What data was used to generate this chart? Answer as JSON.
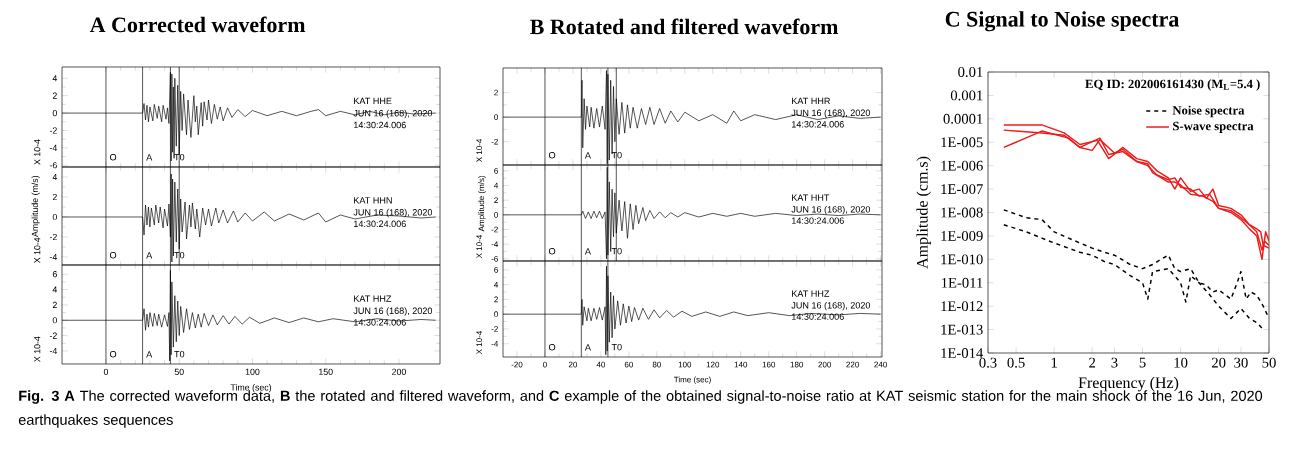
{
  "chart_data": [
    {
      "type": "line",
      "title": "A  Corrected waveform",
      "ylabel": "X 10-4",
      "color": "#000000",
      "xlim": [
        -30,
        228
      ],
      "ylim": [
        -6.2,
        5.3
      ],
      "xticks": [
        0,
        50,
        100,
        150,
        200
      ],
      "yticks": [
        -6,
        -4,
        -2,
        0,
        2,
        4
      ],
      "tick_labels": "y",
      "ref_lines": [
        {
          "axis": "x",
          "value": 0,
          "label": "O"
        },
        {
          "axis": "x",
          "value": 25,
          "label": "A"
        },
        {
          "axis": "x",
          "value": 44,
          "label": "T0"
        },
        {
          "axis": "x",
          "value": 50
        }
      ],
      "annotations": [
        "KAT  HHE",
        "JUN 16 (168), 2020",
        "14:30:24.006"
      ],
      "x": [
        -30,
        25,
        26,
        27,
        28,
        29,
        30,
        32,
        33,
        35,
        36,
        38,
        39,
        41,
        42,
        43,
        44,
        44.5,
        45,
        45.5,
        46,
        46.5,
        47,
        48,
        49,
        50,
        51,
        52,
        53,
        55,
        56,
        58,
        60,
        61,
        62,
        63,
        65,
        66,
        67,
        69,
        70,
        72,
        74,
        76,
        78,
        80,
        83,
        86,
        90,
        95,
        100,
        110,
        120,
        130,
        140,
        145,
        150,
        160,
        170,
        180,
        190,
        200,
        210,
        225
      ],
      "values": [
        0,
        0,
        1.1,
        -0.8,
        0.9,
        -1.0,
        0.7,
        -0.9,
        1.0,
        -0.6,
        0.8,
        -1.0,
        0.9,
        -0.7,
        0.6,
        -1.2,
        4.7,
        -5.5,
        4.5,
        -4.5,
        3.0,
        -5.2,
        4.0,
        -3.8,
        3.2,
        -4.8,
        2.5,
        -2.0,
        2.2,
        -2.5,
        1.5,
        -2.8,
        2.0,
        -1.0,
        0.8,
        -2.5,
        1.2,
        -1.5,
        1.3,
        -0.8,
        1.5,
        -1.2,
        1.0,
        -0.7,
        0.7,
        -0.9,
        0.6,
        -0.5,
        0.4,
        -0.4,
        0.3,
        -0.3,
        0.2,
        -0.3,
        0.2,
        0.4,
        -0.3,
        0.2,
        -0.2,
        0.2,
        -0.2,
        0.1,
        -0.1,
        0
      ]
    },
    {
      "type": "line",
      "ylabel": "X 10-4",
      "color": "#000000",
      "xlim": [
        -30,
        228
      ],
      "ylim": [
        -4.8,
        5
      ],
      "xticks": [
        0,
        50,
        100,
        150,
        200
      ],
      "yticks": [
        -4,
        -2,
        0,
        2,
        4
      ],
      "tick_labels": "y",
      "ref_lines": [
        {
          "axis": "x",
          "value": 0,
          "label": "O"
        },
        {
          "axis": "x",
          "value": 25,
          "label": "A"
        },
        {
          "axis": "x",
          "value": 44,
          "label": "T0"
        },
        {
          "axis": "x",
          "value": 50
        }
      ],
      "annotations": [
        "KAT  HHN",
        "JUN 16 (168), 2020",
        "14:30:24.006",
        "Amplitude (m/s)"
      ],
      "x": [
        -30,
        25,
        26,
        27,
        28,
        29,
        30,
        31,
        33,
        34,
        36,
        37,
        39,
        40,
        42,
        43,
        44,
        44.5,
        45,
        45.5,
        46,
        47,
        48,
        49,
        50,
        51,
        52,
        54,
        55,
        57,
        58,
        59,
        61,
        62,
        64,
        66,
        68,
        70,
        72,
        75,
        77,
        80,
        83,
        87,
        90,
        95,
        100,
        108,
        115,
        125,
        135,
        145,
        150,
        160,
        170,
        185,
        200,
        215,
        225
      ],
      "values": [
        0,
        0,
        -1.8,
        1.2,
        -0.8,
        1.0,
        -1.0,
        0.9,
        -0.8,
        1.2,
        -0.6,
        1.0,
        -1.1,
        0.8,
        -0.9,
        1.3,
        -2.0,
        4.3,
        -4.5,
        3.8,
        -3.9,
        3.5,
        -2.5,
        2.8,
        -3.2,
        1.8,
        -1.5,
        1.5,
        -2.2,
        1.2,
        -1.0,
        1.4,
        -1.2,
        0.8,
        -2.0,
        0.9,
        -0.8,
        0.8,
        -0.9,
        0.9,
        -0.6,
        0.7,
        -0.6,
        0.6,
        -0.5,
        0.4,
        -0.4,
        0.5,
        -0.4,
        0.3,
        -0.3,
        0.4,
        -0.5,
        0.2,
        -0.2,
        0.2,
        0.1,
        -0.1,
        0
      ]
    },
    {
      "type": "line",
      "xlabel": "Time (sec)",
      "ylabel": "X 10-4",
      "color": "#000000",
      "xlim": [
        -30,
        228
      ],
      "ylim": [
        -5.7,
        7.2
      ],
      "xticks": [
        0,
        50,
        100,
        150,
        200
      ],
      "yticks": [
        -4,
        -2,
        0,
        2,
        4,
        6
      ],
      "ref_lines": [
        {
          "axis": "x",
          "value": 0,
          "label": "O"
        },
        {
          "axis": "x",
          "value": 25,
          "label": "A"
        },
        {
          "axis": "x",
          "value": 44,
          "label": "T0"
        }
      ],
      "annotations": [
        "KAT  HHZ",
        "JUN 16 (168), 2020",
        "14:30:24.006"
      ],
      "x": [
        -30,
        25,
        26,
        27,
        28,
        29,
        30,
        32,
        33,
        35,
        36,
        38,
        40,
        42,
        43,
        43.5,
        44,
        44.5,
        45,
        46,
        47,
        48,
        49,
        50,
        51,
        53,
        55,
        57,
        59,
        61,
        63,
        65,
        67,
        70,
        73,
        76,
        80,
        84,
        88,
        93,
        98,
        105,
        115,
        125,
        135,
        145,
        155,
        170,
        185,
        200,
        215,
        225
      ],
      "values": [
        0,
        0,
        1.5,
        -1.3,
        0.8,
        -0.9,
        1.0,
        -0.8,
        0.9,
        -0.7,
        0.8,
        -0.9,
        0.7,
        -0.8,
        1.0,
        -5.3,
        6.5,
        -4.5,
        5.0,
        -3.5,
        3.2,
        -2.8,
        2.5,
        -2.0,
        1.8,
        -1.6,
        1.5,
        -1.2,
        1.0,
        -1.0,
        0.8,
        -0.9,
        0.9,
        -0.7,
        0.7,
        -0.6,
        0.6,
        -0.5,
        0.5,
        -0.5,
        0.4,
        -0.4,
        0.3,
        -0.3,
        0.3,
        -0.2,
        0.2,
        -0.2,
        0.2,
        -0.1,
        0.1,
        0
      ]
    },
    {
      "type": "line",
      "title": "B  Rotated and filtered waveform",
      "ylabel": "X 10-4",
      "color": "#000000",
      "xlim": [
        -30,
        241
      ],
      "ylim": [
        -3.9,
        4
      ],
      "xticks": [
        -20,
        0,
        20,
        40,
        60,
        80,
        100,
        120,
        140,
        160,
        180,
        200,
        220,
        240
      ],
      "yticks": [
        -2,
        0,
        2
      ],
      "tick_labels": "y",
      "ref_lines": [
        {
          "axis": "x",
          "value": 0,
          "label": "O"
        },
        {
          "axis": "x",
          "value": 26,
          "label": "A"
        },
        {
          "axis": "x",
          "value": 45,
          "label": "T0"
        },
        {
          "axis": "x",
          "value": 51
        }
      ],
      "annotations": [
        "KAT  HHR",
        "JUN 16 (168), 2020",
        "14:30:24.006"
      ],
      "x": [
        -30,
        26,
        26.5,
        27,
        28,
        29,
        30,
        32,
        33,
        35,
        37,
        39,
        41,
        43,
        44,
        44.5,
        45,
        46,
        47,
        48,
        49,
        50,
        51,
        53,
        55,
        57,
        59,
        61,
        63,
        66,
        69,
        72,
        75,
        78,
        82,
        86,
        90,
        95,
        100,
        110,
        120,
        130,
        135,
        140,
        150,
        165,
        180,
        195,
        210,
        225,
        240
      ],
      "values": [
        0,
        0,
        3.0,
        -2.5,
        1.5,
        -1.0,
        0.9,
        -0.8,
        0.8,
        -0.9,
        0.7,
        -0.8,
        0.9,
        -1.0,
        3.8,
        -3.8,
        3.5,
        -3.5,
        3.0,
        -3.0,
        2.5,
        -2.0,
        1.5,
        -1.4,
        1.2,
        -1.3,
        1.0,
        -0.9,
        0.8,
        -0.9,
        0.7,
        -0.6,
        0.8,
        -0.6,
        0.7,
        -0.5,
        0.5,
        -0.4,
        0.4,
        -0.3,
        0.2,
        -0.5,
        0.5,
        -0.3,
        0.2,
        -0.2,
        0.2,
        -0.2,
        0.1,
        -0.1,
        0
      ]
    },
    {
      "type": "line",
      "ylabel": "X 10-4",
      "color": "#000000",
      "xlim": [
        -30,
        241
      ],
      "ylim": [
        -6.3,
        6.8
      ],
      "xticks": [
        -20,
        0,
        20,
        40,
        60,
        80,
        100,
        120,
        140,
        160,
        180,
        200,
        220,
        240
      ],
      "yticks": [
        -6,
        -4,
        -2,
        0,
        2,
        4,
        6
      ],
      "tick_labels": "y",
      "ref_lines": [
        {
          "axis": "x",
          "value": 0,
          "label": "O"
        },
        {
          "axis": "x",
          "value": 26,
          "label": "A"
        },
        {
          "axis": "x",
          "value": 45,
          "label": "T0"
        },
        {
          "axis": "x",
          "value": 51
        }
      ],
      "annotations": [
        "KAT  HHT",
        "JUN 16 (168), 2020",
        "14:30:24.006",
        "Amplitude (m/s)"
      ],
      "x": [
        -30,
        26,
        27,
        29,
        31,
        33,
        35,
        37,
        39,
        41,
        43,
        44,
        44.5,
        45,
        46,
        47,
        48,
        49,
        50,
        51,
        53,
        55,
        57,
        59,
        61,
        63,
        65,
        67,
        70,
        72,
        75,
        78,
        82,
        86,
        90,
        95,
        100,
        110,
        120,
        130,
        140,
        150,
        165,
        180,
        195,
        210,
        225,
        240
      ],
      "values": [
        0,
        0,
        0.5,
        -0.5,
        0.4,
        -0.5,
        0.5,
        -0.4,
        0.5,
        -0.5,
        0.4,
        -6.0,
        6.5,
        -5.5,
        4.5,
        -5.0,
        3.5,
        -3.0,
        3.0,
        -2.5,
        2.0,
        -2.2,
        1.8,
        -3.2,
        1.5,
        -2.0,
        1.3,
        -1.2,
        1.0,
        -0.8,
        0.6,
        -0.5,
        0.4,
        -0.4,
        0.3,
        -0.3,
        0.3,
        -0.3,
        0.2,
        -0.2,
        0.2,
        -0.2,
        0.2,
        -0.1,
        0.1,
        -0.1,
        0.1,
        0
      ]
    },
    {
      "type": "line",
      "xlabel": "Time (sec)",
      "ylabel": "X 10-4",
      "color": "#000000",
      "xlim": [
        -30,
        241
      ],
      "ylim": [
        -5.8,
        7.2
      ],
      "xticks": [
        -20,
        0,
        20,
        40,
        60,
        80,
        100,
        120,
        140,
        160,
        180,
        200,
        220,
        240
      ],
      "yticks": [
        -4,
        -2,
        0,
        2,
        4,
        6
      ],
      "ref_lines": [
        {
          "axis": "x",
          "value": 0,
          "label": "O"
        },
        {
          "axis": "x",
          "value": 26,
          "label": "A"
        },
        {
          "axis": "x",
          "value": 45,
          "label": "T0"
        }
      ],
      "annotations": [
        "KAT  HHZ",
        "JUN 16 (168), 2020",
        "14:30:24.006"
      ],
      "x": [
        -30,
        26,
        26.5,
        27,
        28,
        30,
        31,
        33,
        35,
        37,
        39,
        41,
        43,
        43.5,
        44,
        44.5,
        45,
        46,
        47,
        48,
        49,
        50,
        52,
        54,
        56,
        58,
        60,
        62,
        64,
        67,
        70,
        74,
        78,
        82,
        87,
        92,
        98,
        105,
        115,
        125,
        135,
        145,
        160,
        175,
        190,
        210,
        225,
        240
      ],
      "values": [
        0,
        0,
        2.0,
        -1.5,
        1.0,
        -0.9,
        0.8,
        -0.9,
        0.8,
        -0.7,
        0.9,
        -0.8,
        1.0,
        -5.5,
        6.5,
        -5.0,
        5.2,
        -3.8,
        3.0,
        -3.2,
        2.5,
        -2.0,
        1.8,
        -1.5,
        1.4,
        -1.2,
        1.1,
        -1.0,
        0.9,
        -0.8,
        0.8,
        -0.7,
        0.6,
        -0.5,
        0.5,
        -0.4,
        0.4,
        -0.3,
        0.3,
        -0.3,
        0.3,
        -0.2,
        0.2,
        -0.2,
        0.1,
        -0.1,
        0.1,
        0
      ]
    },
    {
      "type": "line",
      "title": "C  Signal to Noise spectra",
      "xlabel": "Frequency (Hz)",
      "ylabel": "Amplitude (cm.s)",
      "log": "xy",
      "legend": "top right",
      "xlim": [
        0.3,
        50
      ],
      "ylim": [
        1e-14,
        0.01
      ],
      "xticks": [
        0.3,
        0.5,
        1,
        2,
        3,
        5,
        10,
        20,
        30,
        50
      ],
      "yticks": [
        0.01,
        0.001,
        0.0001,
        {
          "value": 1e-05,
          "label": "1E-005"
        },
        {
          "value": 1e-06,
          "label": "1E-006"
        },
        {
          "value": 1e-07,
          "label": "1E-007"
        },
        {
          "value": 1e-08,
          "label": "1E-008"
        },
        {
          "value": 1e-09,
          "label": "1E-009"
        },
        {
          "value": 1e-10,
          "label": "1E-010"
        },
        {
          "value": 1e-11,
          "label": "1E-011"
        },
        {
          "value": 1e-12,
          "label": "1E-012"
        },
        {
          "value": 1e-13,
          "label": "1E-013"
        },
        {
          "value": 1e-14,
          "label": "1E-014"
        }
      ],
      "annotations": [
        "EQ ID: 202006161430 (M$_{L}$=5.4 )"
      ],
      "series": [
        {
          "name": "Noise spectra",
          "color": "#000000",
          "line_style": "dashed",
          "x": [
            0.4,
            0.6,
            0.8,
            1,
            1.3,
            1.6,
            2,
            2.5,
            3,
            4,
            5,
            6,
            7,
            8,
            9,
            10,
            12,
            14,
            16,
            18,
            20,
            25,
            28,
            30,
            33,
            36,
            40,
            45,
            50
          ],
          "values": [
            1.3e-08,
            6e-09,
            5e-09,
            1.5e-09,
            8e-10,
            5e-10,
            3e-10,
            2e-10,
            1.5e-10,
            6e-11,
            4e-11,
            6e-11,
            1e-10,
            1.5e-10,
            4e-11,
            3e-11,
            4e-11,
            1e-11,
            8e-12,
            4e-12,
            5e-12,
            2e-12,
            1e-11,
            3e-11,
            2e-12,
            4e-12,
            3e-12,
            1e-12,
            3e-13
          ]
        },
        {
          "color": "#000000",
          "line_style": "dashed",
          "x": [
            0.4,
            0.6,
            0.8,
            1,
            1.3,
            1.6,
            2,
            2.5,
            3,
            4,
            5,
            5.5,
            6,
            8,
            10,
            11,
            12,
            14,
            17,
            20,
            25,
            30,
            35,
            40,
            45
          ],
          "values": [
            3e-09,
            1.5e-09,
            8e-10,
            5e-10,
            3e-10,
            2e-10,
            1.5e-10,
            8e-11,
            6e-11,
            2e-11,
            1e-11,
            2e-12,
            3e-11,
            4e-11,
            1e-11,
            1.5e-12,
            2e-11,
            1e-11,
            3e-12,
            1e-12,
            3e-13,
            8e-13,
            3e-13,
            2e-13,
            1e-13
          ]
        },
        {
          "name": "S-wave spectra",
          "color": "#ee1c1c",
          "line_style": "solid",
          "x": [
            0.4,
            0.8,
            1.2,
            1.6,
            2.2,
            2.7,
            3.5,
            4.5,
            5.5,
            6.5,
            8,
            9,
            10,
            12,
            14,
            16,
            18,
            20,
            25,
            30,
            35,
            40,
            43,
            45,
            50
          ],
          "values": [
            5.5e-05,
            5.5e-05,
            2.5e-05,
            8e-06,
            1.2e-05,
            2e-06,
            6e-06,
            2e-06,
            1.5e-06,
            6e-07,
            3e-07,
            1e-07,
            3e-07,
            8e-08,
            1e-07,
            4e-08,
            1e-07,
            2e-08,
            1.5e-08,
            8e-09,
            3e-09,
            2e-09,
            1.5e-09,
            4e-10,
            3e-10
          ]
        },
        {
          "color": "#ee1c1c",
          "line_style": "solid",
          "x": [
            0.4,
            0.8,
            1.2,
            1.6,
            2,
            2.3,
            3,
            3.5,
            4.5,
            5.5,
            6.5,
            8,
            9,
            10,
            12,
            14,
            17,
            20,
            25,
            30,
            35,
            40,
            44,
            46,
            50
          ],
          "values": [
            3.3e-05,
            2.5e-05,
            2e-05,
            6e-06,
            4.5e-06,
            1.3e-05,
            3.5e-06,
            5e-06,
            1.5e-06,
            1e-06,
            4e-07,
            2.5e-07,
            3e-07,
            1.2e-07,
            1e-07,
            5e-08,
            6e-08,
            1.5e-08,
            1.2e-08,
            6e-09,
            3e-09,
            1.5e-09,
            2.5e-10,
            6e-10,
            4e-10
          ]
        },
        {
          "color": "#ee1c1c",
          "line_style": "solid",
          "x": [
            0.4,
            0.8,
            1.3,
            1.6,
            2.3,
            2.7,
            3.5,
            4.5,
            5.5,
            6,
            8,
            9,
            10,
            12,
            15,
            18,
            20,
            25,
            30,
            35,
            40,
            44,
            47,
            50
          ],
          "values": [
            6e-06,
            3e-05,
            1.5e-05,
            6e-06,
            1.5e-05,
            3e-06,
            4e-06,
            1.5e-06,
            1.2e-06,
            5e-07,
            2e-07,
            2e-07,
            1.5e-07,
            6e-08,
            5e-08,
            3e-08,
            1.5e-08,
            1e-08,
            5e-09,
            2e-09,
            1e-09,
            1e-10,
            1.5e-09,
            6e-10
          ]
        }
      ]
    },
    {
      "type": "other",
      "annotations": [
        "**Fig. 3** **A** The corrected waveform data, **B** the rotated and filtered waveform, and **C** example of the obtained signal-to-noise ratio at KAT seismic station for the main shock of the 16 Jun, 2020 earthquakes sequences"
      ]
    }
  ]
}
